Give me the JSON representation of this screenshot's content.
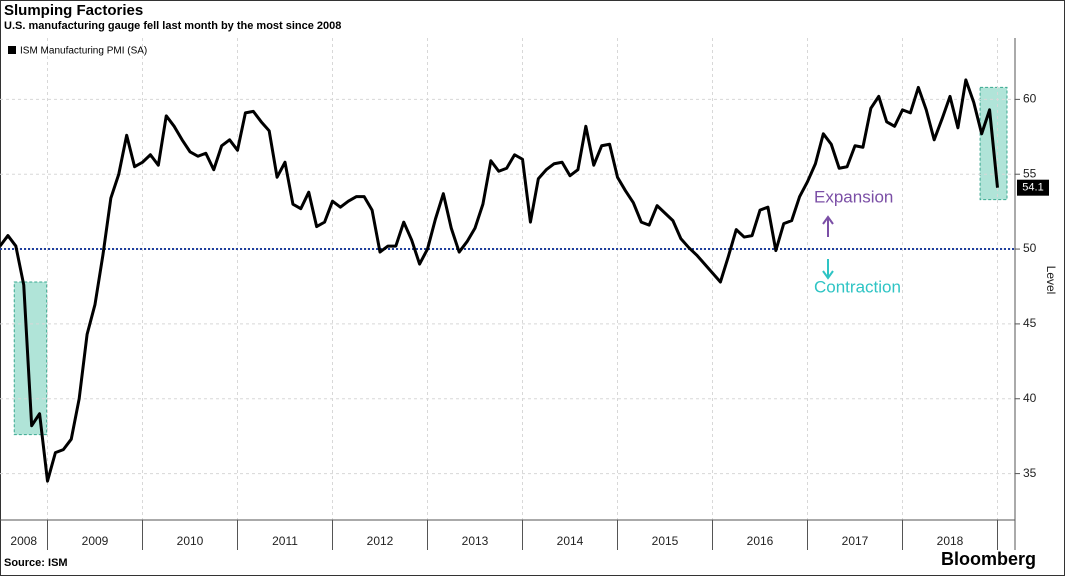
{
  "chart_data": {
    "type": "line",
    "title": "Slumping Factories",
    "subtitle": "U.S. manufacturing gauge fell last month by the most since 2008",
    "source": "Source: ISM",
    "brand": "Bloomberg",
    "y_label": "Level",
    "annotations": [
      "Expansion",
      "Contraction"
    ],
    "reference_line": 50,
    "highlights": [
      {
        "xlim": [
          1.8,
          5.9
        ],
        "ylim": [
          37.6,
          47.8
        ]
      },
      {
        "xlim": [
          123.8,
          127.2
        ],
        "ylim": [
          53.3,
          60.8
        ]
      }
    ],
    "year_labels": [
      "2008",
      "2009",
      "2010",
      "2011",
      "2012",
      "2013",
      "2014",
      "2015",
      "2016",
      "2017",
      "2018"
    ],
    "categories": [
      null,
      null,
      null,
      null,
      null,
      null,
      null,
      null,
      null,
      null,
      null,
      null,
      null,
      null,
      null,
      null,
      null,
      null,
      null,
      null,
      null,
      null,
      null,
      null,
      null,
      null,
      null,
      null,
      null,
      null,
      null,
      null,
      null,
      null,
      null,
      null,
      null,
      null,
      null,
      null,
      null,
      null,
      null,
      null,
      null,
      null,
      null,
      null,
      null,
      null,
      null,
      null,
      null,
      null,
      null,
      null,
      null,
      null,
      null,
      null,
      null,
      null,
      null,
      null,
      null,
      null,
      null,
      null,
      null,
      null,
      null,
      null,
      null,
      null,
      null,
      null,
      null,
      null,
      null,
      null,
      null,
      null,
      null,
      null,
      null,
      null,
      null,
      null,
      null,
      null,
      null,
      null,
      null,
      null,
      null,
      null,
      null,
      null,
      null,
      null,
      null,
      null,
      null,
      null,
      null,
      null,
      null,
      null,
      null,
      null,
      null,
      null,
      null,
      null,
      null,
      null,
      null,
      null,
      null,
      null,
      null,
      null,
      null,
      null,
      null,
      null,
      null
    ],
    "series": [
      {
        "name": "ISM Manufacturing PMI (SA)",
        "color": "#000000",
        "values": [
          50.2,
          50.9,
          50.2,
          47.6,
          38.2,
          39.0,
          34.5,
          36.4,
          36.6,
          37.3,
          40.0,
          44.3,
          46.3,
          49.6,
          53.4,
          55.0,
          57.6,
          55.5,
          55.8,
          56.3,
          55.6,
          58.9,
          58.2,
          57.3,
          56.5,
          56.2,
          56.4,
          55.3,
          56.9,
          57.3,
          56.6,
          59.1,
          59.2,
          58.5,
          57.9,
          54.8,
          55.8,
          53.0,
          52.7,
          53.8,
          51.5,
          51.8,
          53.2,
          52.8,
          53.2,
          53.5,
          53.5,
          52.6,
          49.8,
          50.2,
          50.2,
          51.8,
          50.6,
          49.0,
          50.0,
          52.0,
          53.7,
          51.4,
          49.8,
          50.5,
          51.4,
          53.0,
          55.9,
          55.2,
          55.4,
          56.3,
          56.0,
          51.8,
          54.7,
          55.3,
          55.7,
          55.8,
          54.9,
          55.3,
          58.2,
          55.6,
          56.9,
          57.0,
          54.8,
          53.9,
          53.1,
          51.8,
          51.6,
          52.9,
          52.4,
          51.9,
          50.7,
          50.1,
          49.6,
          49.0,
          48.4,
          47.8,
          49.5,
          51.3,
          50.8,
          50.9,
          52.6,
          52.8,
          49.9,
          51.7,
          51.9,
          53.5,
          54.5,
          55.7,
          57.7,
          57.0,
          55.4,
          55.5,
          56.9,
          56.8,
          59.4,
          60.2,
          58.5,
          58.2,
          59.3,
          59.1,
          60.8,
          59.3,
          57.3,
          58.7,
          60.2,
          58.1,
          61.3,
          59.8,
          57.7,
          59.3,
          54.1
        ]
      }
    ],
    "ylim": [
      31.9,
      64.1
    ],
    "yticks": [
      35,
      40,
      45,
      50,
      55,
      60
    ],
    "grid": true
  }
}
